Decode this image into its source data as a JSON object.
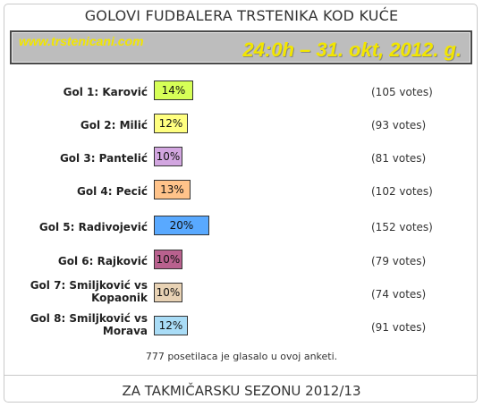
{
  "title": "GOLOVI FUDBALERA TRSTENIKA KOD KUĆE",
  "banner": {
    "site": "www.trstenicani.com",
    "stamp": "24:0h – 31. okt, 2012. g."
  },
  "poll": [
    {
      "label": "Gol 1: Karović",
      "percent": "14%",
      "votes": "(105 votes)",
      "share": 14,
      "color": "#d6ff57"
    },
    {
      "label": "Gol 2: Milić",
      "percent": "12%",
      "votes": "(93 votes)",
      "share": 12,
      "color": "#ffff80"
    },
    {
      "label": "Gol 3: Pantelić",
      "percent": "10%",
      "votes": "(81 votes)",
      "share": 10,
      "color": "#d2a6e0"
    },
    {
      "label": "Gol 4: Pecić",
      "percent": "13%",
      "votes": "(102 votes)",
      "share": 13,
      "color": "#ffc38a"
    },
    {
      "label": "Gol 5: Radivojević",
      "percent": "20%",
      "votes": "(152 votes)",
      "share": 20,
      "color": "#59a9ff"
    },
    {
      "label": "Gol 6: Rajković",
      "percent": "10%",
      "votes": "(79 votes)",
      "share": 10,
      "color": "#b9618e"
    },
    {
      "label": "Gol 7: Smiljković vs Kopaonik",
      "label_lines": [
        "Gol 7: Smiljković vs",
        "Kopaonik"
      ],
      "percent": "10%",
      "votes": "(74 votes)",
      "share": 10,
      "color": "#e8d2b4"
    },
    {
      "label": "Gol 8: Smiljković vs Morava",
      "label_lines": [
        "Gol 8: Smiljković vs",
        "Morava"
      ],
      "percent": "12%",
      "votes": "(91 votes)",
      "share": 12,
      "color": "#a9dcf6"
    }
  ],
  "summary": "777 posetilaca je glasalo u ovoj anketi.",
  "footer": "ZA TAKMIČARSKU SEZONU 2012/13"
}
